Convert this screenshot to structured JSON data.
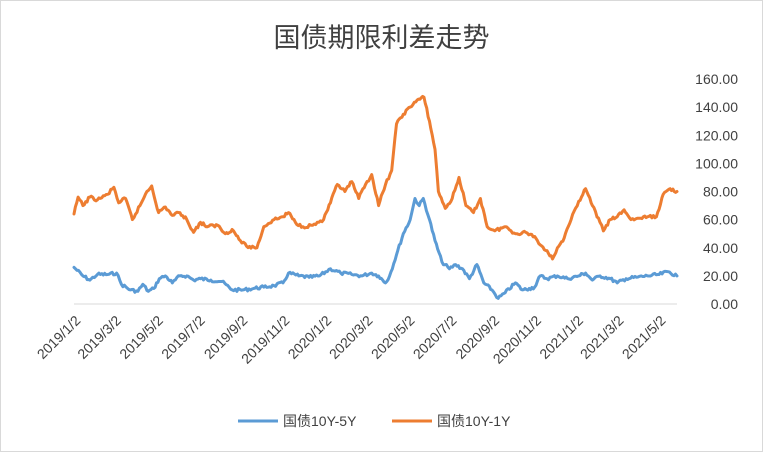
{
  "chart_data": {
    "type": "line",
    "title": "国债期限利差走势",
    "xlabel": "",
    "ylabel": "",
    "ylim": [
      0,
      160
    ],
    "y_ticks": [
      "0.00",
      "20.00",
      "40.00",
      "60.00",
      "80.00",
      "100.00",
      "120.00",
      "140.00",
      "160.00"
    ],
    "x_ticks": [
      "2019/1/2",
      "2019/3/2",
      "2019/5/2",
      "2019/7/2",
      "2019/9/2",
      "2019/11/2",
      "2020/1/2",
      "2020/3/2",
      "2020/5/2",
      "2020/7/2",
      "2020/9/2",
      "2020/11/2",
      "2021/1/2",
      "2021/3/2",
      "2021/5/2"
    ],
    "x_range": [
      "2019/1/2",
      "2021/5/28"
    ],
    "legend_position": "bottom",
    "series": [
      {
        "name": "国债10Y-5Y",
        "color": "#5b9bd5",
        "points": [
          [
            "2019/1/2",
            26
          ],
          [
            "2019/1/15",
            20
          ],
          [
            "2019/1/25",
            17
          ],
          [
            "2019/2/5",
            21
          ],
          [
            "2019/2/20",
            21
          ],
          [
            "2019/3/5",
            22
          ],
          [
            "2019/3/12",
            14
          ],
          [
            "2019/3/25",
            10
          ],
          [
            "2019/4/5",
            9
          ],
          [
            "2019/4/12",
            14
          ],
          [
            "2019/4/20",
            9
          ],
          [
            "2019/4/28",
            11
          ],
          [
            "2019/5/6",
            18
          ],
          [
            "2019/5/15",
            20
          ],
          [
            "2019/5/25",
            15
          ],
          [
            "2019/6/5",
            20
          ],
          [
            "2019/6/15",
            20
          ],
          [
            "2019/6/25",
            17
          ],
          [
            "2019/7/5",
            18
          ],
          [
            "2019/7/20",
            17
          ],
          [
            "2019/8/5",
            16
          ],
          [
            "2019/8/20",
            10
          ],
          [
            "2019/9/5",
            10
          ],
          [
            "2019/9/20",
            11
          ],
          [
            "2019/10/5",
            12
          ],
          [
            "2019/10/20",
            13
          ],
          [
            "2019/11/2",
            15
          ],
          [
            "2019/11/10",
            22
          ],
          [
            "2019/11/25",
            20
          ],
          [
            "2019/12/10",
            19
          ],
          [
            "2019/12/25",
            20
          ],
          [
            "2020/1/10",
            25
          ],
          [
            "2020/1/25",
            22
          ],
          [
            "2020/2/10",
            21
          ],
          [
            "2020/2/25",
            20
          ],
          [
            "2020/3/10",
            22
          ],
          [
            "2020/3/20",
            20
          ],
          [
            "2020/3/30",
            15
          ],
          [
            "2020/4/5",
            20
          ],
          [
            "2020/4/15",
            35
          ],
          [
            "2020/4/25",
            50
          ],
          [
            "2020/5/5",
            60
          ],
          [
            "2020/5/12",
            75
          ],
          [
            "2020/5/18",
            70
          ],
          [
            "2020/5/24",
            75
          ],
          [
            "2020/6/2",
            60
          ],
          [
            "2020/6/10",
            45
          ],
          [
            "2020/6/20",
            30
          ],
          [
            "2020/7/1",
            25
          ],
          [
            "2020/7/10",
            28
          ],
          [
            "2020/7/20",
            25
          ],
          [
            "2020/7/30",
            18
          ],
          [
            "2020/8/10",
            28
          ],
          [
            "2020/8/20",
            15
          ],
          [
            "2020/9/1",
            10
          ],
          [
            "2020/9/10",
            4
          ],
          [
            "2020/9/20",
            8
          ],
          [
            "2020/10/5",
            15
          ],
          [
            "2020/10/15",
            10
          ],
          [
            "2020/10/25",
            11
          ],
          [
            "2020/11/2",
            12
          ],
          [
            "2020/11/10",
            20
          ],
          [
            "2020/11/20",
            18
          ],
          [
            "2020/12/5",
            20
          ],
          [
            "2020/12/20",
            18
          ],
          [
            "2021/1/5",
            20
          ],
          [
            "2021/1/15",
            22
          ],
          [
            "2021/1/25",
            17
          ],
          [
            "2021/2/5",
            20
          ],
          [
            "2021/2/20",
            18
          ],
          [
            "2021/3/2",
            15
          ],
          [
            "2021/3/15",
            18
          ],
          [
            "2021/3/30",
            19
          ],
          [
            "2021/4/15",
            20
          ],
          [
            "2021/5/2",
            21
          ],
          [
            "2021/5/15",
            23
          ],
          [
            "2021/5/28",
            20
          ]
        ]
      },
      {
        "name": "国债10Y-1Y",
        "color": "#ed7d31",
        "points": [
          [
            "2019/1/2",
            64
          ],
          [
            "2019/1/8",
            76
          ],
          [
            "2019/1/15",
            70
          ],
          [
            "2019/1/25",
            76
          ],
          [
            "2019/2/5",
            74
          ],
          [
            "2019/2/20",
            78
          ],
          [
            "2019/3/1",
            83
          ],
          [
            "2019/3/8",
            72
          ],
          [
            "2019/3/18",
            75
          ],
          [
            "2019/3/28",
            60
          ],
          [
            "2019/4/8",
            70
          ],
          [
            "2019/4/18",
            80
          ],
          [
            "2019/4/25",
            84
          ],
          [
            "2019/5/5",
            65
          ],
          [
            "2019/5/15",
            69
          ],
          [
            "2019/5/25",
            63
          ],
          [
            "2019/6/5",
            65
          ],
          [
            "2019/6/15",
            60
          ],
          [
            "2019/6/25",
            51
          ],
          [
            "2019/7/5",
            58
          ],
          [
            "2019/7/15",
            55
          ],
          [
            "2019/7/30",
            56
          ],
          [
            "2019/8/10",
            50
          ],
          [
            "2019/8/20",
            53
          ],
          [
            "2019/9/1",
            45
          ],
          [
            "2019/9/10",
            41
          ],
          [
            "2019/9/25",
            40
          ],
          [
            "2019/10/5",
            55
          ],
          [
            "2019/10/20",
            60
          ],
          [
            "2019/11/2",
            62
          ],
          [
            "2019/11/10",
            65
          ],
          [
            "2019/11/20",
            58
          ],
          [
            "2019/12/1",
            55
          ],
          [
            "2019/12/15",
            56
          ],
          [
            "2019/12/31",
            60
          ],
          [
            "2020/1/10",
            72
          ],
          [
            "2020/1/20",
            85
          ],
          [
            "2020/1/31",
            80
          ],
          [
            "2020/2/10",
            87
          ],
          [
            "2020/2/20",
            75
          ],
          [
            "2020/3/1",
            85
          ],
          [
            "2020/3/10",
            92
          ],
          [
            "2020/3/20",
            70
          ],
          [
            "2020/3/30",
            85
          ],
          [
            "2020/4/8",
            95
          ],
          [
            "2020/4/15",
            128
          ],
          [
            "2020/4/25",
            135
          ],
          [
            "2020/5/5",
            140
          ],
          [
            "2020/5/15",
            145
          ],
          [
            "2020/5/25",
            147
          ],
          [
            "2020/6/2",
            130
          ],
          [
            "2020/6/10",
            110
          ],
          [
            "2020/6/15",
            80
          ],
          [
            "2020/6/25",
            68
          ],
          [
            "2020/7/5",
            75
          ],
          [
            "2020/7/15",
            90
          ],
          [
            "2020/7/25",
            70
          ],
          [
            "2020/8/5",
            65
          ],
          [
            "2020/8/15",
            75
          ],
          [
            "2020/8/25",
            55
          ],
          [
            "2020/9/5",
            52
          ],
          [
            "2020/9/20",
            55
          ],
          [
            "2020/10/5",
            50
          ],
          [
            "2020/10/20",
            51
          ],
          [
            "2020/11/2",
            48
          ],
          [
            "2020/11/10",
            42
          ],
          [
            "2020/11/20",
            38
          ],
          [
            "2020/11/28",
            32
          ],
          [
            "2020/12/5",
            40
          ],
          [
            "2020/12/15",
            47
          ],
          [
            "2020/12/25",
            60
          ],
          [
            "2021/1/5",
            73
          ],
          [
            "2021/1/15",
            82
          ],
          [
            "2021/1/25",
            70
          ],
          [
            "2021/2/5",
            58
          ],
          [
            "2021/2/10",
            52
          ],
          [
            "2021/2/20",
            60
          ],
          [
            "2021/3/2",
            62
          ],
          [
            "2021/3/12",
            67
          ],
          [
            "2021/3/22",
            60
          ],
          [
            "2021/4/5",
            61
          ],
          [
            "2021/4/15",
            62
          ],
          [
            "2021/4/28",
            62
          ],
          [
            "2021/5/8",
            78
          ],
          [
            "2021/5/18",
            82
          ],
          [
            "2021/5/28",
            80
          ]
        ]
      }
    ]
  }
}
